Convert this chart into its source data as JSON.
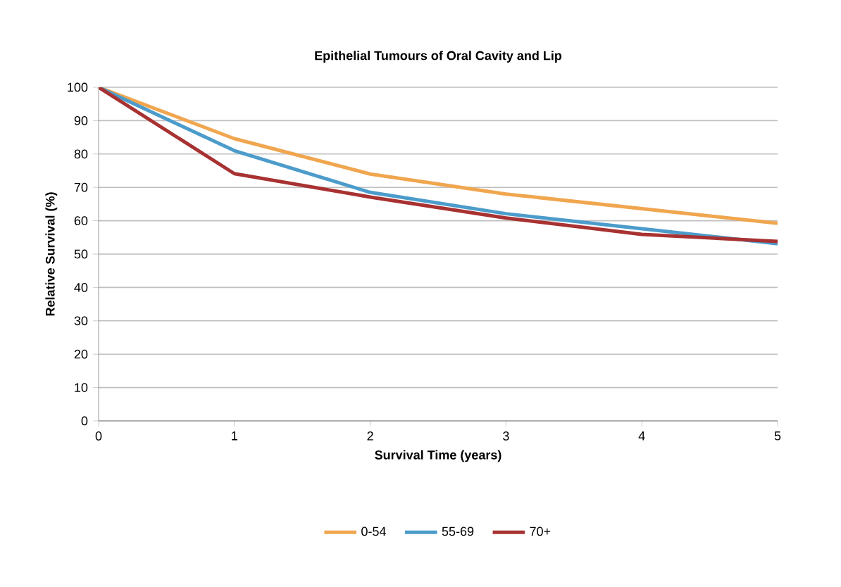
{
  "chart_data": {
    "type": "line",
    "title": "Epithelial Tumours of Oral Cavity and Lip",
    "xlabel": "Survival Time (years)",
    "ylabel": "Relative Survival (%)",
    "x": [
      0,
      1,
      2,
      3,
      4,
      5
    ],
    "series": [
      {
        "name": "0-54",
        "color": "#f0a64f",
        "values": [
          100,
          84.6,
          74,
          68,
          63.6,
          59.2
        ]
      },
      {
        "name": "55-69",
        "color": "#4c9ccb",
        "values": [
          100,
          81,
          68.5,
          62.1,
          57.6,
          53.1
        ]
      },
      {
        "name": "70+",
        "color": "#a83232",
        "values": [
          100,
          74.1,
          67.1,
          60.8,
          55.9,
          53.8
        ]
      }
    ],
    "xlim": [
      0,
      5
    ],
    "ylim": [
      0,
      100
    ],
    "xticks": [
      0,
      1,
      2,
      3,
      4,
      5
    ],
    "yticks": [
      0,
      10,
      20,
      30,
      40,
      50,
      60,
      70,
      80,
      90,
      100
    ],
    "grid": "y",
    "legend": "bottom",
    "marker": "none",
    "line_style": "solid"
  }
}
